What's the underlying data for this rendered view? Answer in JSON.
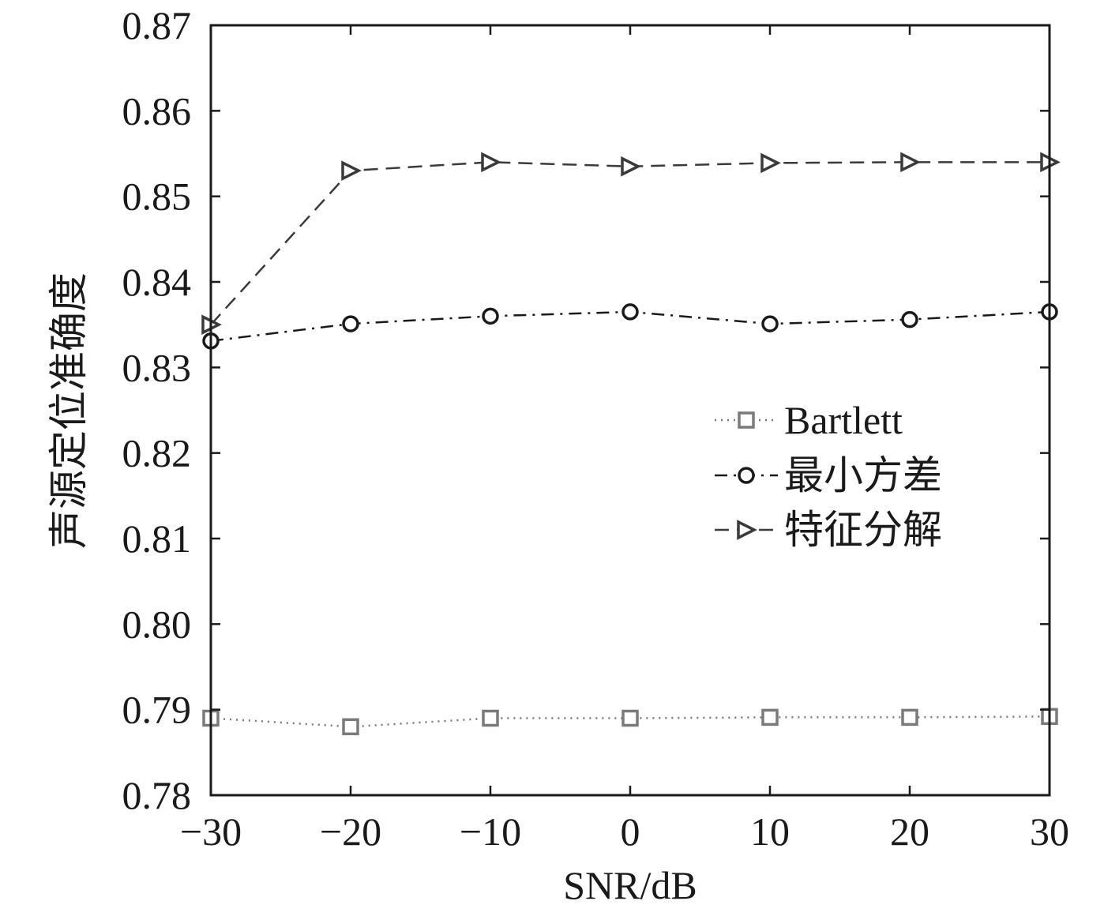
{
  "chart_data": {
    "type": "line",
    "title": "",
    "xlabel": "SNR/dB",
    "ylabel": "声源定位准确度",
    "x": [
      -30,
      -20,
      -10,
      0,
      10,
      20,
      30
    ],
    "xlim": [
      -30,
      30
    ],
    "ylim": [
      0.78,
      0.87
    ],
    "xticks": [
      -30,
      -20,
      -10,
      0,
      10,
      20,
      30
    ],
    "xtick_labels": [
      "−30",
      "−20",
      "−10",
      "0",
      "10",
      "20",
      "30"
    ],
    "yticks": [
      0.78,
      0.79,
      0.8,
      0.81,
      0.82,
      0.83,
      0.84,
      0.85,
      0.86,
      0.87
    ],
    "ytick_labels": [
      "0.78",
      "0.79",
      "0.80",
      "0.81",
      "0.82",
      "0.83",
      "0.84",
      "0.85",
      "0.86",
      "0.87"
    ],
    "grid": false,
    "legend_position": "right",
    "series": [
      {
        "name": "Bartlett",
        "values": [
          0.789,
          0.788,
          0.789,
          0.789,
          0.7891,
          0.7891,
          0.7892
        ],
        "marker": "square",
        "line_style": "dotted",
        "color": "#7a7a7a"
      },
      {
        "name": "最小方差",
        "values": [
          0.8331,
          0.8351,
          0.836,
          0.8365,
          0.8351,
          0.8356,
          0.8365
        ],
        "marker": "circle",
        "line_style": "dash-dot",
        "color": "#1a1a1a"
      },
      {
        "name": "特征分解",
        "values": [
          0.835,
          0.853,
          0.854,
          0.8535,
          0.8539,
          0.854,
          0.854
        ],
        "marker": "triangle-right",
        "line_style": "dashed",
        "color": "#3a3a3a"
      }
    ]
  }
}
